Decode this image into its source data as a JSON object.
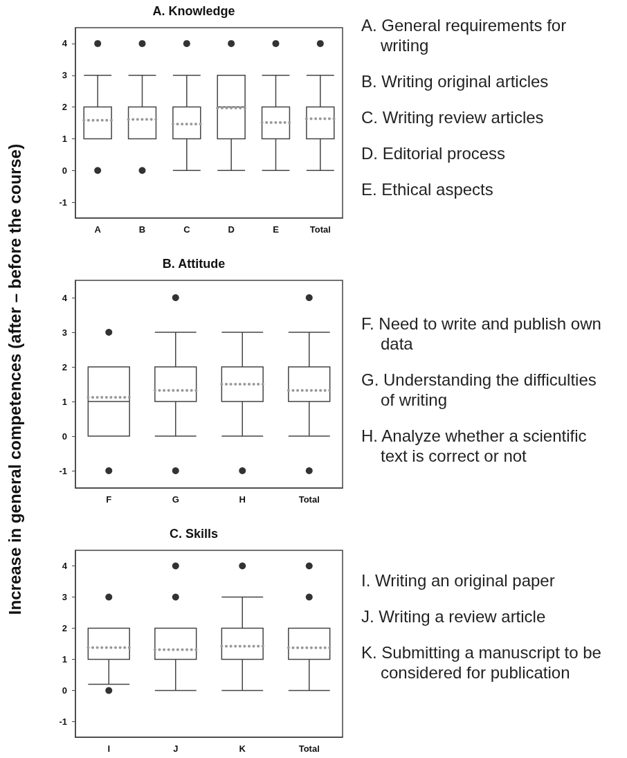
{
  "chart_data": [
    {
      "type": "box",
      "title": "A. Knowledge",
      "categories": [
        "A",
        "B",
        "C",
        "D",
        "E",
        "Total"
      ],
      "ylim": [
        -1.5,
        4.5
      ],
      "yticks": [
        -1,
        0,
        1,
        2,
        3,
        4
      ],
      "boxes": [
        {
          "low": 1,
          "q1": 1,
          "median": 2,
          "q3": 2,
          "high": 3,
          "mean": 1.58,
          "outliers": [
            0,
            4
          ]
        },
        {
          "low": 1,
          "q1": 1,
          "median": 2,
          "q3": 2,
          "high": 3,
          "mean": 1.61,
          "outliers": [
            0,
            4
          ]
        },
        {
          "low": 0,
          "q1": 1,
          "median": 2,
          "q3": 2,
          "high": 3,
          "mean": 1.46,
          "outliers": [
            4
          ]
        },
        {
          "low": 0,
          "q1": 1,
          "median": 2,
          "q3": 3,
          "high": 3,
          "mean": 1.97,
          "outliers": [
            4
          ]
        },
        {
          "low": 0,
          "q1": 1,
          "median": 2,
          "q3": 2,
          "high": 3,
          "mean": 1.51,
          "outliers": [
            4
          ]
        },
        {
          "low": 0,
          "q1": 1,
          "median": 2,
          "q3": 2,
          "high": 3,
          "mean": 1.63,
          "outliers": [
            4
          ]
        }
      ]
    },
    {
      "type": "other",
      "annotations": [
        "A. General requirements for writing",
        "B. Writing original articles",
        "C. Writing review articles",
        "D. Editorial process",
        "E. Ethical aspects"
      ]
    },
    {
      "type": "box",
      "title": "B. Attitude",
      "ylabel": "Increase in general competences (after – before the course)",
      "categories": [
        "F",
        "G",
        "H",
        "Total"
      ],
      "ylim": [
        -1.5,
        4.5
      ],
      "yticks": [
        -1,
        0,
        1,
        2,
        3,
        4
      ],
      "boxes": [
        {
          "low": 0,
          "q1": 0,
          "median": 1,
          "q3": 2,
          "high": 2,
          "mean": 1.12,
          "outliers": [
            -1,
            3
          ]
        },
        {
          "low": 0,
          "q1": 1,
          "median": 1,
          "q3": 2,
          "high": 3,
          "mean": 1.32,
          "outliers": [
            -1,
            4
          ]
        },
        {
          "low": 0,
          "q1": 1,
          "median": 2,
          "q3": 2,
          "high": 3,
          "mean": 1.5,
          "outliers": [
            -1
          ]
        },
        {
          "low": 0,
          "q1": 1,
          "median": 1,
          "q3": 2,
          "high": 3,
          "mean": 1.32,
          "outliers": [
            -1,
            4
          ]
        }
      ]
    },
    {
      "type": "other",
      "annotations": [
        "F. Need to write and publish own data",
        "G. Understanding the difficulties of writing",
        "H. Analyze whether a scientific text is correct or not"
      ]
    },
    {
      "type": "box",
      "title": "C. Skills",
      "categories": [
        "I",
        "J",
        "K",
        "Total"
      ],
      "ylim": [
        -1.5,
        4.5
      ],
      "yticks": [
        -1,
        0,
        1,
        2,
        3,
        4
      ],
      "boxes": [
        {
          "low": 0.2,
          "q1": 1,
          "median": 1,
          "q3": 2,
          "high": 2,
          "mean": 1.38,
          "outliers": [
            0,
            3
          ]
        },
        {
          "low": 0,
          "q1": 1,
          "median": 1,
          "q3": 2,
          "high": 2,
          "mean": 1.31,
          "outliers": [
            3,
            4
          ]
        },
        {
          "low": 0,
          "q1": 1,
          "median": 1,
          "q3": 2,
          "high": 3,
          "mean": 1.42,
          "outliers": [
            4
          ]
        },
        {
          "low": 0,
          "q1": 1,
          "median": 1,
          "q3": 2,
          "high": 2,
          "mean": 1.37,
          "outliers": [
            3,
            4
          ]
        }
      ]
    },
    {
      "type": "other",
      "annotations": [
        "I. Writing an original paper",
        "J. Writing a review article",
        "K. Submitting a manuscript to be considered for publication"
      ]
    }
  ]
}
